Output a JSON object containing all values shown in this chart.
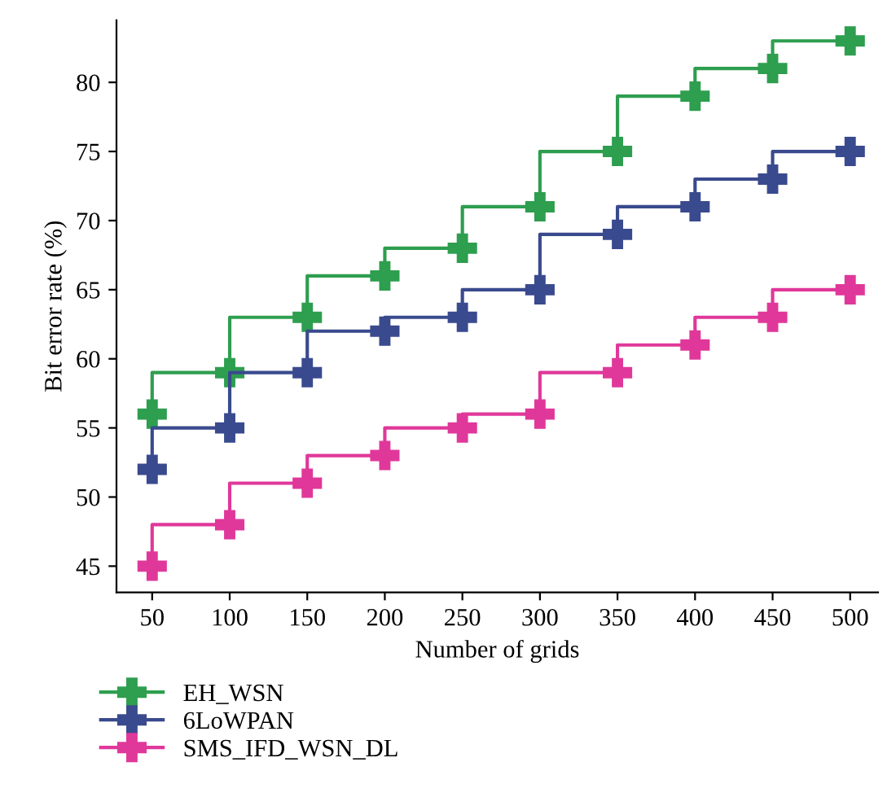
{
  "chart_data": {
    "type": "step",
    "xlabel": "Number of grids",
    "ylabel": "Bit error rate (%)",
    "x": [
      50,
      100,
      150,
      200,
      250,
      300,
      350,
      400,
      450,
      500
    ],
    "series": [
      {
        "name": "EH_WSN",
        "color": "#2e9e4f",
        "values": [
          56,
          59,
          63,
          66,
          68,
          71,
          75,
          79,
          81,
          83
        ]
      },
      {
        "name": "6LoWPAN",
        "color": "#3a4a8e",
        "values": [
          52,
          55,
          59,
          62,
          63,
          65,
          69,
          71,
          73,
          75
        ]
      },
      {
        "name": "SMS_IFD_WSN_DL",
        "color": "#e0389a",
        "values": [
          45,
          48,
          51,
          53,
          55,
          56,
          59,
          61,
          63,
          65
        ]
      }
    ],
    "xlim": [
      27,
      518
    ],
    "ylim": [
      43.1,
      84.5
    ],
    "xticks": [
      50,
      100,
      150,
      200,
      250,
      300,
      350,
      400,
      450,
      500
    ],
    "yticks": [
      45,
      50,
      55,
      60,
      65,
      70,
      75,
      80
    ],
    "grid": false,
    "legend": "bottom left",
    "marker": "cross",
    "line_style": "solid"
  }
}
